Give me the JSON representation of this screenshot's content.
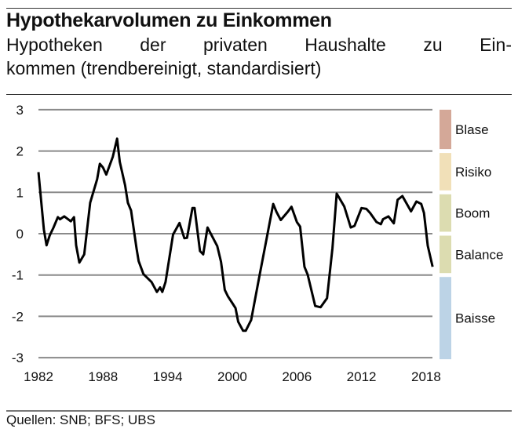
{
  "title": "Hypothekarvolumen zu Einkommen",
  "subtitle": "Hypotheken der privaten Haushalte zu Ein-kommen (trendbereinigt, standardisiert)",
  "subtitle_line1": "Hypotheken der privaten Haushalte zu Ein-",
  "subtitle_line2": "kommen (trendbereinigt, standardisiert)",
  "footer": "Quellen: SNB; BFS; UBS",
  "chart_data": {
    "type": "line",
    "title": "Hypothekarvolumen zu Einkommen",
    "xlabel": "",
    "ylabel": "",
    "xlim": [
      1982,
      2018.6
    ],
    "ylim": [
      -3,
      3
    ],
    "grid": true,
    "xticks": [
      "1982",
      "1988",
      "1994",
      "2000",
      "2006",
      "2012",
      "2018"
    ],
    "yticks": [
      "3",
      "2",
      "1",
      "0",
      "-1",
      "-2",
      "-3"
    ],
    "line_color": "#000000",
    "bands": [
      {
        "label": "Blase",
        "from": 2,
        "to": 3,
        "color": "#d4a898"
      },
      {
        "label": "Risiko",
        "from": 1,
        "to": 2,
        "color": "#f1e0b8"
      },
      {
        "label": "Boom",
        "from": 0,
        "to": 1,
        "color": "#dcdcb0"
      },
      {
        "label": "Balance",
        "from": -1,
        "to": 0,
        "color": "#dcdcb0"
      },
      {
        "label": "Baisse",
        "from": -3,
        "to": -1,
        "color": "#bcd3e6"
      }
    ],
    "x": [
      1982.0,
      1982.3,
      1982.5,
      1982.75,
      1983.05,
      1983.4,
      1983.8,
      1984.0,
      1984.4,
      1985.0,
      1985.3,
      1985.5,
      1985.8,
      1986.25,
      1986.8,
      1987.45,
      1987.7,
      1988.0,
      1988.3,
      1988.9,
      1989.3,
      1989.55,
      1990.05,
      1990.3,
      1990.6,
      1991.1,
      1991.3,
      1991.75,
      1992.5,
      1993.0,
      1993.3,
      1993.5,
      1993.8,
      1994.5,
      1995.1,
      1995.55,
      1995.8,
      1996.3,
      1996.5,
      1997.0,
      1997.3,
      1997.7,
      1998.6,
      1998.95,
      1999.3,
      1999.6,
      2000.0,
      2000.3,
      2000.55,
      2001.0,
      2001.25,
      2001.75,
      2002.5,
      2003.2,
      2003.8,
      2004.1,
      2004.5,
      2005.15,
      2005.5,
      2006.0,
      2006.3,
      2006.7,
      2007.0,
      2007.7,
      2008.2,
      2008.8,
      2009.3,
      2009.7,
      2010.4,
      2011.0,
      2011.35,
      2012.0,
      2012.45,
      2012.8,
      2013.4,
      2013.8,
      2014.0,
      2014.5,
      2015.0,
      2015.35,
      2015.8,
      2016.6,
      2017.1,
      2017.55,
      2017.8,
      2018.15,
      2018.6
    ],
    "values": [
      1.49,
      0.66,
      0.1,
      -0.28,
      -0.04,
      0.15,
      0.4,
      0.35,
      0.42,
      0.3,
      0.4,
      -0.28,
      -0.7,
      -0.5,
      0.75,
      1.32,
      1.69,
      1.6,
      1.43,
      1.86,
      2.3,
      1.74,
      1.17,
      0.75,
      0.56,
      -0.35,
      -0.66,
      -0.98,
      -1.17,
      -1.41,
      -1.3,
      -1.41,
      -1.17,
      -0.02,
      0.26,
      -0.11,
      -0.1,
      0.62,
      0.62,
      -0.42,
      -0.5,
      0.15,
      -0.3,
      -0.68,
      -1.36,
      -1.52,
      -1.68,
      -1.8,
      -2.13,
      -2.35,
      -2.35,
      -2.09,
      -1.05,
      -0.1,
      0.72,
      0.53,
      0.33,
      0.53,
      0.65,
      0.28,
      0.17,
      -0.8,
      -0.99,
      -1.75,
      -1.78,
      -1.56,
      -0.35,
      0.97,
      0.66,
      0.15,
      0.19,
      0.62,
      0.6,
      0.5,
      0.28,
      0.23,
      0.35,
      0.42,
      0.25,
      0.82,
      0.91,
      0.54,
      0.78,
      0.72,
      0.5,
      -0.29,
      -0.8
    ]
  }
}
